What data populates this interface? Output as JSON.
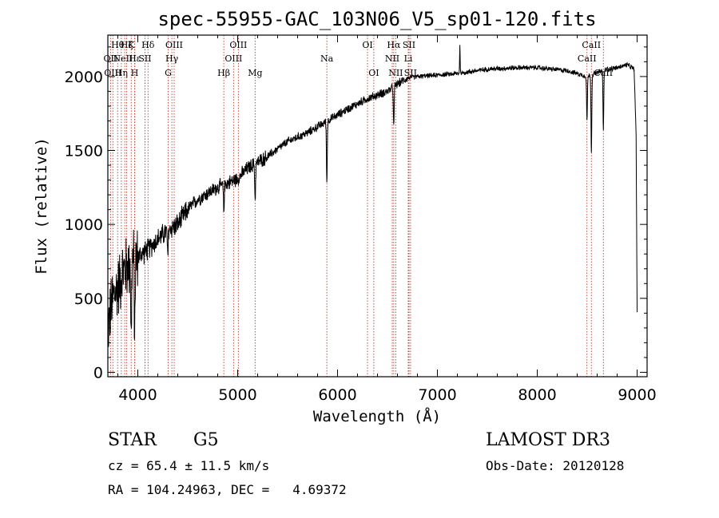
{
  "chart_data": {
    "type": "line",
    "title": "spec-55955-GAC_103N06_V5_sp01-120.fits",
    "xlabel": "Wavelength (Å)",
    "ylabel": "Flux (relative)",
    "xlim": [
      3700,
      9100
    ],
    "ylim": [
      -30,
      2280
    ],
    "x_ticks": [
      4000,
      5000,
      6000,
      7000,
      8000,
      9000
    ],
    "y_ticks": [
      0,
      500,
      1000,
      1500,
      2000
    ],
    "continuum": {
      "x": [
        3700,
        3750,
        3800,
        3850,
        3900,
        3950,
        4000,
        4100,
        4200,
        4300,
        4400,
        4500,
        4600,
        4700,
        4800,
        4900,
        5000,
        5100,
        5200,
        5300,
        5500,
        5700,
        5900,
        6100,
        6300,
        6500,
        6600,
        6700,
        6800,
        7000,
        7200,
        7500,
        7800,
        8000,
        8300,
        8500,
        8700,
        8800,
        8900,
        8970,
        8990,
        9000
      ],
      "y": [
        300,
        500,
        580,
        680,
        720,
        760,
        780,
        830,
        900,
        960,
        1000,
        1100,
        1170,
        1210,
        1250,
        1280,
        1310,
        1380,
        1420,
        1460,
        1560,
        1620,
        1700,
        1780,
        1850,
        1900,
        1950,
        1990,
        2000,
        2010,
        2020,
        2050,
        2060,
        2060,
        2040,
        2000,
        2050,
        2060,
        2080,
        2050,
        1600,
        400
      ]
    },
    "absorption_features": [
      {
        "x": 3934,
        "depth": 550
      },
      {
        "x": 3968,
        "depth": 500
      },
      {
        "x": 4300,
        "depth": 200
      },
      {
        "x": 4861,
        "depth": 180
      },
      {
        "x": 5175,
        "depth": 250
      },
      {
        "x": 5893,
        "depth": 420
      },
      {
        "x": 6563,
        "depth": 280
      },
      {
        "x": 8498,
        "depth": 300
      },
      {
        "x": 8542,
        "depth": 520
      },
      {
        "x": 8662,
        "depth": 400
      }
    ],
    "emission_features": [
      {
        "x": 7225,
        "height": 180
      }
    ],
    "line_markers": [
      {
        "x": 3727,
        "label": "OII",
        "row": 1
      },
      {
        "x": 3750,
        "label": "OIII",
        "row": 2
      },
      {
        "x": 3798,
        "label": "Hθ",
        "row": 0
      },
      {
        "x": 3835,
        "label": "Hη",
        "row": 2
      },
      {
        "x": 3869,
        "label": "NeIII",
        "row": 1
      },
      {
        "x": 3889,
        "label": "Hζ",
        "row": 0
      },
      {
        "x": 3934,
        "label": "K",
        "row": 0
      },
      {
        "x": 3968,
        "label": "H",
        "row": 2
      },
      {
        "x": 3970,
        "label": "Hε",
        "row": 1
      },
      {
        "x": 4072,
        "label": "SII",
        "row": 1
      },
      {
        "x": 4102,
        "label": "Hδ",
        "row": 0
      },
      {
        "x": 4304,
        "label": "G",
        "row": 2
      },
      {
        "x": 4341,
        "label": "Hγ",
        "row": 1
      },
      {
        "x": 4364,
        "label": "OIII",
        "row": 0
      },
      {
        "x": 4861,
        "label": "Hβ",
        "row": 2
      },
      {
        "x": 4959,
        "label": "OIII",
        "row": 1
      },
      {
        "x": 5007,
        "label": "OIII",
        "row": 0
      },
      {
        "x": 5175,
        "label": "Mg",
        "row": 2
      },
      {
        "x": 5893,
        "label": "Na",
        "row": 1
      },
      {
        "x": 6300,
        "label": "OI",
        "row": 0
      },
      {
        "x": 6363,
        "label": "OI",
        "row": 2
      },
      {
        "x": 6548,
        "label": "NII",
        "row": 1
      },
      {
        "x": 6563,
        "label": "Hα",
        "row": 0
      },
      {
        "x": 6583,
        "label": "NII",
        "row": 2
      },
      {
        "x": 6708,
        "label": "Li",
        "row": 1
      },
      {
        "x": 6716,
        "label": "SII",
        "row": 0
      },
      {
        "x": 6731,
        "label": "SII",
        "row": 2
      },
      {
        "x": 8498,
        "label": "CaII",
        "row": 1
      },
      {
        "x": 8542,
        "label": "CaII",
        "row": 0
      },
      {
        "x": 8662,
        "label": "CaII",
        "row": 2
      }
    ]
  },
  "info": {
    "object_class": "STAR",
    "subclass": "G5",
    "survey": "LAMOST DR3",
    "velocity": "cz = 65.4 ± 11.5 km/s",
    "obs_date": "Obs-Date: 20120128",
    "coords": "RA = 104.24963, DEC =   4.69372"
  },
  "colors": {
    "marker": "#c0392b",
    "spectrum": "#000000"
  }
}
